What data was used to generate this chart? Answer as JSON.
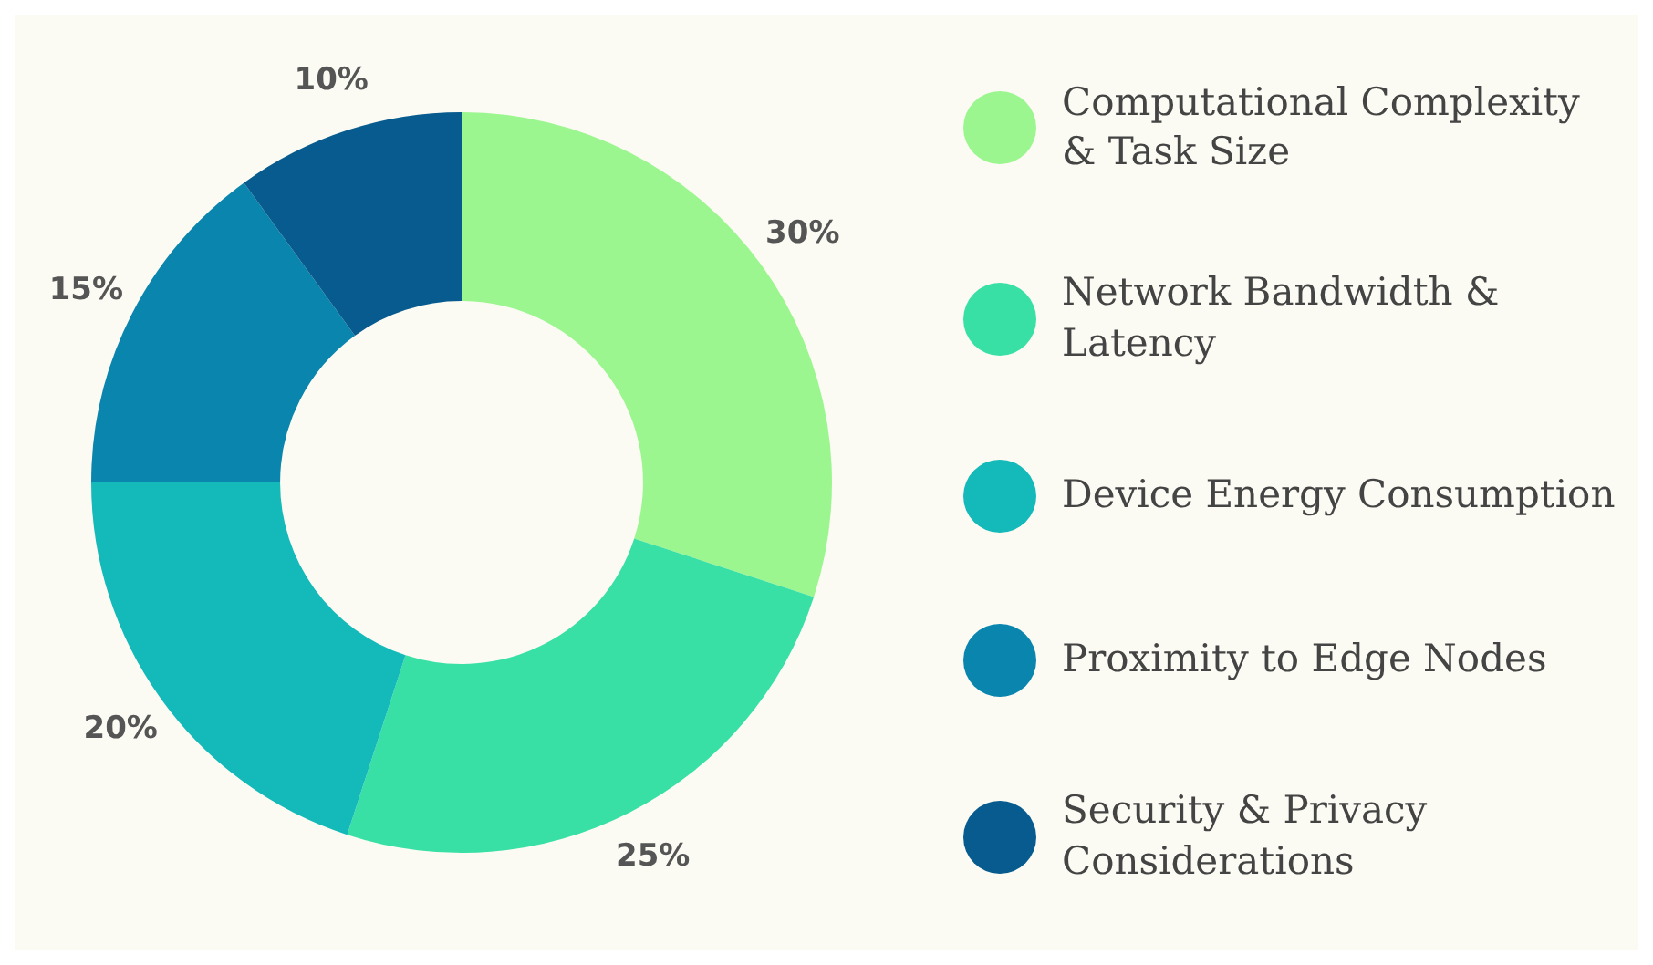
{
  "chart_data": {
    "type": "donut",
    "categories": [
      "Computational Complexity & Task Size",
      "Network Bandwidth & Latency",
      "Device Energy Consumption",
      "Proximity to Edge Nodes",
      "Security & Privacy Considerations"
    ],
    "values": [
      30,
      25,
      20,
      15,
      10
    ],
    "value_labels": [
      "30%",
      "25%",
      "20%",
      "15%",
      "10%"
    ],
    "colors": [
      "#9cf68f",
      "#38e0a6",
      "#14b9b9",
      "#0a86ae",
      "#075b8e"
    ],
    "legend": "right"
  }
}
